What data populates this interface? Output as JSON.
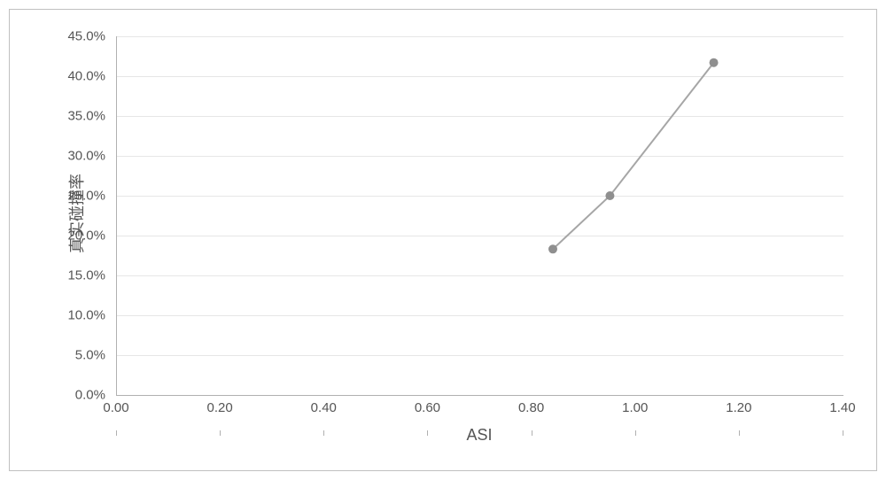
{
  "chart": {
    "type": "line-scatter",
    "background_color": "#ffffff",
    "border_color": "#c0c0c0",
    "grid_color": "#e6e6e6",
    "axis_color": "#b0b0b0",
    "text_color": "#555555",
    "xlabel": "ASI",
    "ylabel": "真实碰撞率",
    "xlabel_fontsize": 18,
    "ylabel_fontsize": 18,
    "tick_fontsize": 15,
    "xlim": [
      0.0,
      1.4
    ],
    "ylim": [
      0.0,
      45.0
    ],
    "xtick_step": 0.2,
    "ytick_step": 5.0,
    "xticks": [
      "0.00",
      "0.20",
      "0.40",
      "0.60",
      "0.80",
      "1.00",
      "1.20",
      "1.40"
    ],
    "yticks": [
      "0.0%",
      "5.0%",
      "10.0%",
      "15.0%",
      "20.0%",
      "25.0%",
      "30.0%",
      "35.0%",
      "40.0%",
      "45.0%"
    ],
    "series": {
      "color": "#a6a6a6",
      "marker_color": "#8f8f8f",
      "line_width": 2,
      "marker_size": 5,
      "points": [
        {
          "x": 0.84,
          "y": 18.3
        },
        {
          "x": 0.95,
          "y": 25.0
        },
        {
          "x": 1.15,
          "y": 41.7
        }
      ]
    }
  }
}
